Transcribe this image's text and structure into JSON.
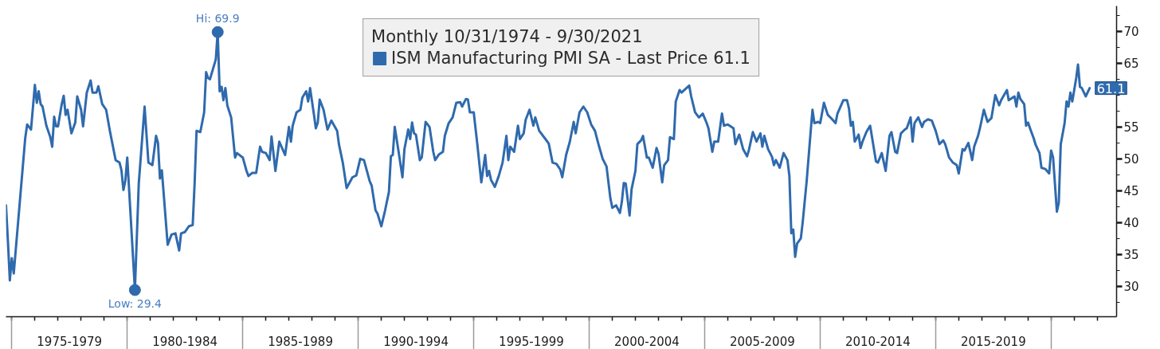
{
  "chart_data": {
    "type": "line",
    "legend": "top",
    "legend_title": "Monthly 10/31/1974 - 9/30/2021",
    "xlim": [
      "1974-10",
      "2022-11"
    ],
    "ylim": [
      25.2,
      74
    ],
    "xticks": [
      {
        "value": "1975-01",
        "label": null
      },
      {
        "value": "1976-01",
        "label": null
      },
      {
        "value": "1977-01",
        "label": null
      },
      {
        "value": "1978-01",
        "label": null
      },
      {
        "value": "1979-01",
        "label": null
      },
      {
        "value": "1980-01",
        "label": null
      },
      {
        "value": "1981-01",
        "label": null
      },
      {
        "value": "1982-01",
        "label": null
      },
      {
        "value": "1983-01",
        "label": null
      },
      {
        "value": "1984-01",
        "label": null
      },
      {
        "value": "1985-01",
        "label": null
      },
      {
        "value": "1986-01",
        "label": null
      },
      {
        "value": "1987-01",
        "label": null
      },
      {
        "value": "1988-01",
        "label": null
      },
      {
        "value": "1989-01",
        "label": null
      },
      {
        "value": "1990-01",
        "label": null
      },
      {
        "value": "1991-01",
        "label": null
      },
      {
        "value": "1992-01",
        "label": null
      },
      {
        "value": "1993-01",
        "label": null
      },
      {
        "value": "1994-01",
        "label": null
      },
      {
        "value": "1995-01",
        "label": null
      },
      {
        "value": "1996-01",
        "label": null
      },
      {
        "value": "1997-01",
        "label": null
      },
      {
        "value": "1998-01",
        "label": null
      },
      {
        "value": "1999-01",
        "label": null
      },
      {
        "value": "2000-01",
        "label": null
      },
      {
        "value": "2001-01",
        "label": null
      },
      {
        "value": "2002-01",
        "label": null
      },
      {
        "value": "2003-01",
        "label": null
      },
      {
        "value": "2004-01",
        "label": null
      },
      {
        "value": "2005-01",
        "label": null
      },
      {
        "value": "2006-01",
        "label": null
      },
      {
        "value": "2007-01",
        "label": null
      },
      {
        "value": "2008-01",
        "label": null
      },
      {
        "value": "2009-01",
        "label": null
      },
      {
        "value": "2010-01",
        "label": null
      },
      {
        "value": "2011-01",
        "label": null
      },
      {
        "value": "2012-01",
        "label": null
      },
      {
        "value": "2013-01",
        "label": null
      },
      {
        "value": "2014-01",
        "label": null
      },
      {
        "value": "2015-01",
        "label": null
      },
      {
        "value": "2016-01",
        "label": null
      },
      {
        "value": "2017-01",
        "label": null
      },
      {
        "value": "2018-01",
        "label": null
      },
      {
        "value": "2019-01",
        "label": null
      },
      {
        "value": "2020-01",
        "label": null
      },
      {
        "value": "2021-01",
        "label": null
      },
      {
        "value": "2022-01",
        "label": null
      },
      {
        "value": "1977-07",
        "label": "1975-1979"
      },
      {
        "value": "1982-07",
        "label": "1980-1984"
      },
      {
        "value": "1987-07",
        "label": "1985-1989"
      },
      {
        "value": "1992-07",
        "label": "1990-1994"
      },
      {
        "value": "1997-07",
        "label": "1995-1999"
      },
      {
        "value": "2002-07",
        "label": "2000-2004"
      },
      {
        "value": "2007-07",
        "label": "2005-2009"
      },
      {
        "value": "2012-07",
        "label": "2010-2014"
      },
      {
        "value": "2017-07",
        "label": "2015-2019"
      }
    ],
    "yticks": [
      {
        "value": 27.5,
        "label": null
      },
      30,
      {
        "value": 32.5,
        "label": null
      },
      35,
      {
        "value": 37.5,
        "label": null
      },
      40,
      {
        "value": 42.5,
        "label": null
      },
      45,
      {
        "value": 47.5,
        "label": null
      },
      50,
      {
        "value": 52.5,
        "label": null
      },
      55,
      {
        "value": 57.5,
        "label": null
      },
      {
        "value": 60,
        "label": null
      },
      {
        "value": 62.5,
        "label": null
      },
      65,
      {
        "value": 67.5,
        "label": null
      },
      70,
      {
        "value": 72.5,
        "label": null
      }
    ],
    "annotations": [
      {
        "text": "Hi: 69.9",
        "x": "1983-12",
        "y": 69.9
      },
      {
        "text": "Low: 29.4",
        "x": "1980-05",
        "y": 29.4
      }
    ],
    "x": [
      "1974-10",
      "1974-11",
      "1974-12",
      "1975-01",
      "1975-02",
      "1975-08",
      "1975-09",
      "1975-11",
      "1976-01",
      "1976-02",
      "1976-03",
      "1976-04",
      "1976-05",
      "1976-07",
      "1976-09",
      "1976-10",
      "1976-11",
      "1976-12",
      "1977-01",
      "1977-03",
      "1977-04",
      "1977-05",
      "1977-06",
      "1977-08",
      "1977-10",
      "1977-11",
      "1978-01",
      "1978-02",
      "1978-04",
      "1978-06",
      "1978-07",
      "1978-09",
      "1978-10",
      "1978-12",
      "1979-02",
      "1979-04",
      "1979-07",
      "1979-09",
      "1979-10",
      "1979-11",
      "1979-12",
      "1980-01",
      "1980-05",
      "1980-07",
      "1980-10",
      "1980-12",
      "1981-02",
      "1981-04",
      "1981-05",
      "1981-06",
      "1981-07",
      "1981-10",
      "1981-12",
      "1982-02",
      "1982-04",
      "1982-05",
      "1982-07",
      "1982-09",
      "1982-11",
      "1982-12",
      "1983-01",
      "1983-03",
      "1983-05",
      "1983-06",
      "1983-07",
      "1983-08",
      "1983-11",
      "1983-12",
      "1984-01",
      "1984-02",
      "1984-03",
      "1984-04",
      "1984-05",
      "1984-07",
      "1984-09",
      "1984-10",
      "1985-01",
      "1985-03",
      "1985-04",
      "1985-06",
      "1985-08",
      "1985-10",
      "1985-11",
      "1986-01",
      "1986-03",
      "1986-04",
      "1986-06",
      "1986-08",
      "1986-10",
      "1986-11",
      "1987-01",
      "1987-02",
      "1987-03",
      "1987-05",
      "1987-07",
      "1987-08",
      "1987-10",
      "1987-11",
      "1987-12",
      "1988-02",
      "1988-03",
      "1988-04",
      "1988-05",
      "1988-07",
      "1988-09",
      "1988-11",
      "1989-02",
      "1989-03",
      "1989-05",
      "1989-07",
      "1989-10",
      "1989-12",
      "1990-02",
      "1990-04",
      "1990-07",
      "1990-08",
      "1990-10",
      "1990-11",
      "1991-01",
      "1991-03",
      "1991-05",
      "1991-06",
      "1991-07",
      "1991-08",
      "1991-10",
      "1991-12",
      "1992-01",
      "1992-03",
      "1992-04",
      "1992-05",
      "1992-06",
      "1992-07",
      "1992-09",
      "1992-10",
      "1992-12",
      "1993-02",
      "1993-04",
      "1993-05",
      "1993-07",
      "1993-09",
      "1993-10",
      "1993-12",
      "1994-02",
      "1994-04",
      "1994-06",
      "1994-07",
      "1994-09",
      "1994-10",
      "1994-11",
      "1995-01",
      "1995-03",
      "1995-05",
      "1995-07",
      "1995-08",
      "1995-09",
      "1995-10",
      "1995-12",
      "1996-02",
      "1996-04",
      "1996-06",
      "1996-07",
      "1996-08",
      "1996-10",
      "1996-12",
      "1997-01",
      "1997-03",
      "1997-04",
      "1997-06",
      "1997-08",
      "1997-09",
      "1997-11",
      "1998-02",
      "1998-04",
      "1998-06",
      "1998-08",
      "1998-10",
      "1998-11",
      "1999-01",
      "1999-03",
      "1999-05",
      "1999-06",
      "1999-08",
      "1999-10",
      "1999-12",
      "2000-02",
      "2000-04",
      "2000-06",
      "2000-08",
      "2000-10",
      "2000-12",
      "2001-01",
      "2001-03",
      "2001-05",
      "2001-06",
      "2001-07",
      "2001-08",
      "2001-10",
      "2001-11",
      "2002-01",
      "2002-02",
      "2002-04",
      "2002-05",
      "2002-07",
      "2002-08",
      "2002-10",
      "2002-12",
      "2003-01",
      "2003-03",
      "2003-04",
      "2003-06",
      "2003-07",
      "2003-09",
      "2003-10",
      "2003-12",
      "2004-01",
      "2004-05",
      "2004-06",
      "2004-08",
      "2004-10",
      "2004-12",
      "2005-02",
      "2005-03",
      "2005-05",
      "2005-06",
      "2005-08",
      "2005-10",
      "2005-11",
      "2006-01",
      "2006-04",
      "2006-05",
      "2006-07",
      "2006-09",
      "2006-11",
      "2006-12",
      "2007-02",
      "2007-04",
      "2007-06",
      "2007-07",
      "2007-08",
      "2007-10",
      "2007-12",
      "2008-01",
      "2008-02",
      "2008-04",
      "2008-06",
      "2008-08",
      "2008-09",
      "2008-10",
      "2008-11",
      "2008-12",
      "2009-01",
      "2009-03",
      "2009-04",
      "2009-06",
      "2009-08",
      "2009-09",
      "2009-10",
      "2009-12",
      "2010-01",
      "2010-03",
      "2010-05",
      "2010-07",
      "2010-09",
      "2010-10",
      "2011-01",
      "2011-03",
      "2011-04",
      "2011-05",
      "2011-06",
      "2011-07",
      "2011-09",
      "2011-10",
      "2011-11",
      "2012-01",
      "2012-03",
      "2012-06",
      "2012-07",
      "2012-09",
      "2012-11",
      "2013-01",
      "2013-02",
      "2013-04",
      "2013-05",
      "2013-07",
      "2013-09",
      "2013-10",
      "2013-12",
      "2014-01",
      "2014-02",
      "2014-04",
      "2014-06",
      "2014-07",
      "2014-09",
      "2014-11",
      "2015-01",
      "2015-03",
      "2015-05",
      "2015-06",
      "2015-08",
      "2015-10",
      "2015-12",
      "2016-01",
      "2016-03",
      "2016-04",
      "2016-06",
      "2016-08",
      "2016-09",
      "2016-11",
      "2016-12",
      "2017-02",
      "2017-04",
      "2017-06",
      "2017-07",
      "2017-08",
      "2017-10",
      "2017-11",
      "2018-02",
      "2018-03",
      "2018-06",
      "2018-07",
      "2018-08",
      "2018-09",
      "2018-11",
      "2018-12",
      "2019-01",
      "2019-02",
      "2019-04",
      "2019-05",
      "2019-07",
      "2019-08",
      "2019-10",
      "2019-12",
      "2020-01",
      "2020-02",
      "2020-04",
      "2020-05",
      "2020-06",
      "2020-08",
      "2020-09",
      "2020-10",
      "2020-11",
      "2020-12",
      "2021-02",
      "2021-03",
      "2021-04",
      "2021-05",
      "2021-07",
      "2021-09"
    ],
    "series": [
      {
        "name": "ISM Manufacturing PMI SA - Last Price 61.1",
        "color": "#2f6aad",
        "values": [
          42.7,
          37.0,
          30.9,
          34.4,
          32.0,
          53.2,
          55.4,
          54.6,
          61.6,
          58.8,
          60.6,
          58.6,
          58.2,
          55.2,
          53.4,
          51.9,
          56.6,
          55.1,
          55.1,
          58.6,
          59.9,
          56.9,
          57.7,
          54.0,
          55.7,
          59.8,
          57.7,
          55.1,
          60.4,
          62.3,
          60.4,
          60.4,
          61.4,
          58.6,
          57.7,
          54.4,
          49.8,
          49.4,
          48.2,
          45.1,
          46.5,
          50.2,
          29.4,
          46.1,
          58.2,
          49.4,
          49.0,
          53.6,
          52.5,
          46.9,
          48.2,
          36.5,
          38.1,
          38.3,
          35.6,
          38.3,
          38.5,
          39.4,
          39.6,
          46.1,
          54.4,
          54.2,
          57.3,
          63.6,
          62.7,
          62.5,
          65.6,
          69.9,
          60.6,
          61.3,
          59.2,
          61.1,
          58.4,
          56.5,
          50.2,
          50.9,
          50.2,
          48.1,
          47.3,
          47.8,
          47.8,
          51.9,
          51.1,
          50.9,
          49.8,
          53.5,
          48.1,
          52.7,
          51.3,
          50.6,
          55.0,
          52.7,
          55.2,
          57.3,
          57.7,
          59.6,
          60.6,
          59.0,
          61.1,
          56.9,
          54.8,
          55.7,
          59.3,
          57.7,
          54.6,
          56.0,
          54.4,
          52.3,
          49.4,
          45.4,
          47.1,
          47.4,
          50.0,
          49.8,
          46.5,
          45.8,
          41.9,
          41.4,
          39.4,
          41.9,
          44.8,
          50.4,
          50.6,
          55.0,
          51.1,
          47.1,
          51.5,
          54.6,
          53.1,
          55.7,
          54.0,
          53.8,
          49.8,
          50.2,
          55.8,
          55.0,
          51.1,
          49.8,
          50.7,
          51.1,
          53.6,
          55.6,
          56.5,
          58.8,
          58.9,
          58.2,
          59.4,
          59.3,
          57.3,
          57.3,
          52.1,
          46.3,
          50.6,
          47.3,
          48.1,
          46.7,
          45.6,
          47.3,
          49.4,
          53.6,
          49.8,
          51.9,
          51.1,
          55.2,
          53.1,
          54.0,
          56.1,
          57.7,
          55.2,
          56.5,
          54.4,
          53.2,
          52.4,
          49.4,
          49.2,
          48.3,
          47.1,
          50.6,
          52.7,
          55.8,
          54.0,
          57.3,
          58.2,
          57.3,
          55.4,
          54.4,
          52.1,
          50.0,
          48.8,
          43.8,
          42.3,
          42.7,
          41.5,
          43.3,
          46.2,
          46.1,
          41.1,
          45.2,
          48.1,
          52.3,
          52.9,
          53.6,
          50.2,
          50.2,
          48.6,
          51.7,
          50.8,
          46.3,
          49.0,
          49.8,
          53.4,
          53.1,
          59.0,
          60.8,
          60.4,
          61.5,
          59.8,
          57.3,
          56.5,
          57.1,
          55.6,
          54.8,
          51.1,
          52.7,
          52.7,
          57.1,
          55.2,
          55.4,
          54.8,
          52.3,
          53.8,
          51.5,
          50.4,
          51.4,
          54.2,
          52.7,
          54.0,
          51.9,
          53.6,
          51.5,
          50.3,
          49.0,
          49.8,
          48.6,
          50.9,
          49.8,
          47.3,
          38.3,
          38.9,
          34.6,
          36.7,
          37.5,
          40.2,
          46.5,
          54.0,
          57.7,
          55.6,
          55.8,
          55.6,
          58.8,
          56.9,
          56.3,
          55.6,
          57.1,
          59.2,
          59.2,
          57.9,
          55.2,
          55.8,
          52.7,
          53.8,
          51.7,
          52.7,
          54.2,
          55.2,
          49.6,
          49.4,
          50.9,
          48.1,
          53.6,
          54.2,
          51.1,
          50.9,
          54.0,
          54.6,
          54.8,
          56.5,
          52.7,
          55.6,
          56.5,
          55.0,
          55.8,
          56.2,
          56.0,
          54.4,
          52.3,
          52.9,
          52.3,
          50.2,
          49.4,
          49.0,
          47.7,
          51.5,
          51.3,
          52.5,
          49.8,
          51.9,
          53.6,
          54.8,
          57.7,
          55.8,
          56.4,
          58.2,
          60.0,
          58.4,
          59.2,
          60.8,
          59.2,
          59.8,
          58.2,
          60.4,
          59.4,
          58.6,
          55.2,
          55.7,
          54.8,
          53.2,
          52.2,
          50.9,
          48.6,
          48.4,
          47.7,
          51.3,
          50.2,
          41.7,
          43.1,
          52.3,
          55.6,
          59.0,
          58.2,
          60.4,
          59.0,
          62.7,
          64.8,
          61.3,
          61.1,
          59.8,
          61.1
        ],
        "value_labels": [
          null,
          null,
          null,
          null,
          null,
          null,
          null,
          null,
          null,
          null,
          null,
          null,
          null,
          null,
          null,
          null,
          null,
          null,
          null,
          null,
          null,
          null,
          null,
          null,
          null,
          null,
          null,
          null,
          null,
          null,
          null,
          null,
          null,
          null,
          null,
          null,
          null,
          null,
          null,
          null,
          null,
          null,
          null,
          null,
          null,
          null,
          null,
          null,
          null,
          null,
          null,
          null,
          null,
          null,
          null,
          null,
          null,
          null,
          null,
          null,
          null,
          null,
          null,
          null,
          null,
          null,
          null,
          null,
          null,
          null,
          null,
          null,
          null,
          null,
          null,
          null,
          null,
          null,
          null,
          null,
          null,
          null,
          null,
          null,
          null,
          null,
          null,
          null,
          null,
          null,
          null,
          null,
          null,
          null,
          null,
          null,
          null,
          null,
          null,
          null,
          null,
          null,
          null,
          null,
          null,
          null,
          null,
          null,
          null,
          null,
          null,
          null,
          null,
          null,
          null,
          null,
          null,
          null,
          null,
          null,
          null,
          null,
          null,
          null,
          null,
          null,
          null,
          null,
          null,
          null,
          null,
          null,
          null,
          null,
          null,
          null,
          null,
          null,
          null,
          null,
          null,
          null,
          null,
          null,
          null,
          null,
          null,
          null,
          null,
          null,
          null,
          null,
          null,
          null,
          null,
          null,
          null,
          null,
          null,
          null,
          null,
          null,
          null,
          null,
          null,
          null,
          null,
          null,
          null,
          null,
          null,
          null,
          null,
          null,
          null,
          null,
          null,
          null,
          null,
          null,
          null,
          null,
          null,
          null,
          null,
          null,
          null,
          null,
          null,
          null,
          null,
          null,
          null,
          null,
          null,
          null,
          null,
          null,
          null,
          null,
          null,
          null,
          null,
          null,
          null,
          null,
          null,
          null,
          null,
          null,
          null,
          null,
          null,
          null,
          null,
          null,
          null,
          null,
          null,
          null,
          null,
          null,
          null,
          null,
          null,
          null,
          null,
          null,
          null,
          null,
          null,
          null,
          null,
          null,
          null,
          null,
          null,
          null,
          null,
          null,
          null,
          null,
          null,
          null,
          null,
          null,
          null,
          null,
          null,
          null,
          null,
          null,
          null,
          null,
          null,
          null,
          null,
          null,
          null,
          null,
          null,
          null,
          null,
          null,
          null,
          null,
          null,
          null,
          null,
          null,
          null,
          null,
          null,
          null,
          null,
          null,
          null,
          null,
          null,
          null,
          null,
          null,
          null,
          null,
          null,
          null,
          null,
          null,
          null,
          null,
          null,
          null,
          null,
          null,
          null,
          null,
          null,
          null,
          null,
          null,
          null,
          null,
          null,
          null,
          null,
          null,
          null,
          null,
          null,
          null,
          null,
          null,
          null,
          null,
          null,
          null,
          null,
          null,
          null,
          null,
          null,
          null,
          null,
          null,
          null,
          null,
          null,
          null,
          null,
          null,
          null,
          null,
          null,
          null,
          null,
          null,
          null,
          null,
          null,
          null,
          null,
          null,
          null,
          null,
          null,
          null,
          null,
          "61.1"
        ]
      }
    ]
  }
}
